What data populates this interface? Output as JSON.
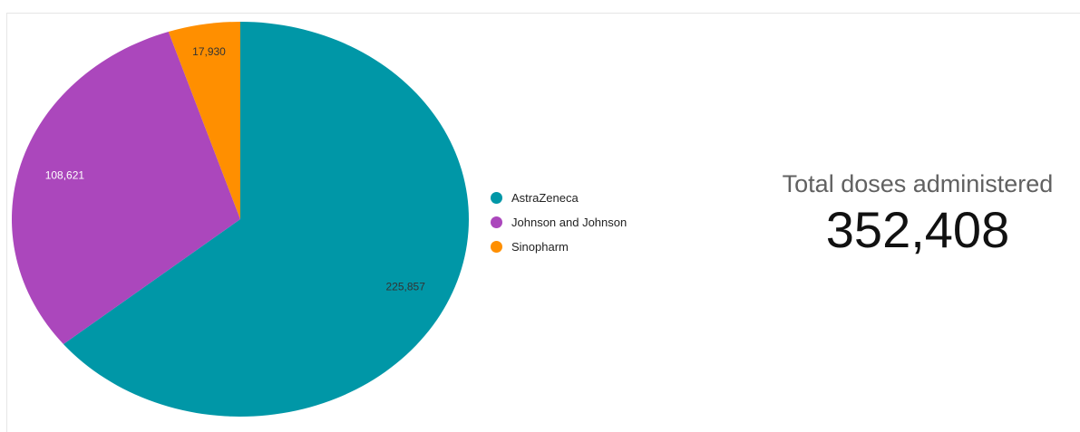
{
  "chart_data": {
    "type": "pie",
    "categories": [
      "AstraZeneca",
      "Johnson and Johnson",
      "Sinopharm"
    ],
    "values": [
      225857,
      108621,
      17930
    ],
    "data_labels": [
      "225,857",
      "108,621",
      "17,930"
    ],
    "colors": [
      "#0097a7",
      "#ab47bc",
      "#ff8f00"
    ],
    "label_colors": [
      "#333333",
      "#ffffff",
      "#333333"
    ],
    "title": "",
    "legend_position": "right"
  },
  "legend": {
    "items": [
      {
        "label": "AstraZeneca",
        "color": "#0097a7"
      },
      {
        "label": "Johnson and Johnson",
        "color": "#ab47bc"
      },
      {
        "label": "Sinopharm",
        "color": "#ff8f00"
      }
    ]
  },
  "scorecard": {
    "title": "Total doses administered",
    "value": "352,408"
  }
}
